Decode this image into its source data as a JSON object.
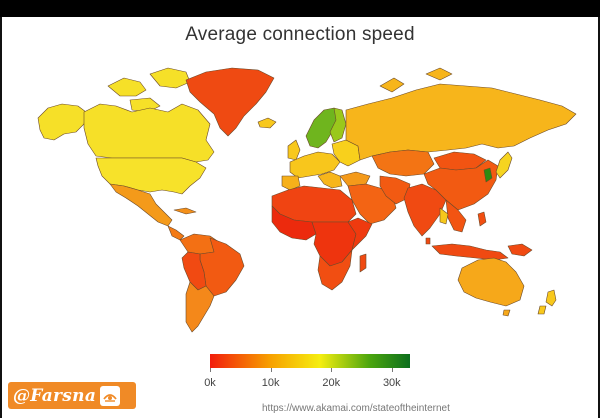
{
  "title": "Average connection speed",
  "legend": {
    "ticks": [
      "0k",
      "10k",
      "20k",
      "30k"
    ],
    "tick_values": [
      0,
      10,
      20,
      30
    ],
    "min": 0,
    "max": 33,
    "gradient": [
      "#f21d0c",
      "#f7a000",
      "#f5ee10",
      "#4aa50e",
      "#0c6e1d"
    ]
  },
  "colors": {
    "very_low": "#ec2a0d",
    "low": "#f04d12",
    "low_mid": "#f37a14",
    "mid": "#f6a81a",
    "mid_high": "#f8c81c",
    "yellow": "#f5ec29",
    "green": "#7dc01c",
    "dark_green": "#2e8a10",
    "border": "#6b4a2a"
  },
  "watermark": {
    "brand": "@Farsna",
    "icon": "farsna-logo-icon"
  },
  "source": "https://www.akamai.com/stateoftheinternet"
}
